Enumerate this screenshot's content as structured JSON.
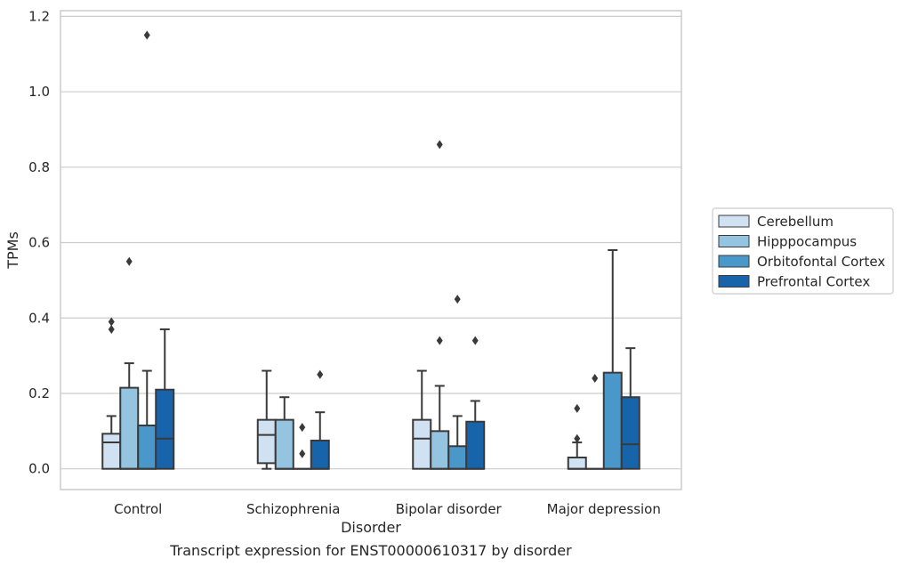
{
  "chart_data": {
    "type": "box",
    "title": "",
    "caption": "Transcript expression for ENST00000610317 by disorder",
    "xlabel": "Disorder",
    "ylabel": "TPMs",
    "ylim": [
      -0.055,
      1.215
    ],
    "yticks": [
      "0.0",
      "0.2",
      "0.4",
      "0.6",
      "0.8",
      "1.0",
      "1.2"
    ],
    "grid": "horizontal",
    "legend_position": "right",
    "categories": [
      "Control",
      "Schizophrenia",
      "Bipolar disorder",
      "Major depression"
    ],
    "series": [
      {
        "name": "Cerebellum",
        "color": "#d0e1f2",
        "boxes": [
          {
            "whisker_low": 0.0,
            "q1": 0.0,
            "median": 0.07,
            "q3": 0.093,
            "whisker_high": 0.14,
            "outliers": [
              0.37,
              0.39
            ]
          },
          {
            "whisker_low": 0.0,
            "q1": 0.015,
            "median": 0.09,
            "q3": 0.13,
            "whisker_high": 0.26,
            "outliers": []
          },
          {
            "whisker_low": 0.0,
            "q1": 0.0,
            "median": 0.08,
            "q3": 0.13,
            "whisker_high": 0.26,
            "outliers": []
          },
          {
            "whisker_low": 0.0,
            "q1": 0.0,
            "median": 0.0,
            "q3": 0.03,
            "whisker_high": 0.07,
            "outliers": [
              0.08,
              0.16
            ]
          }
        ]
      },
      {
        "name": "Hipppocampus",
        "color": "#94c4df",
        "boxes": [
          {
            "whisker_low": 0.0,
            "q1": 0.0,
            "median": 0.0,
            "q3": 0.215,
            "whisker_high": 0.28,
            "outliers": [
              0.55
            ]
          },
          {
            "whisker_low": 0.0,
            "q1": 0.0,
            "median": 0.0,
            "q3": 0.13,
            "whisker_high": 0.19,
            "outliers": []
          },
          {
            "whisker_low": 0.0,
            "q1": 0.0,
            "median": 0.0,
            "q3": 0.1,
            "whisker_high": 0.22,
            "outliers": [
              0.34,
              0.86
            ]
          },
          {
            "whisker_low": 0.0,
            "q1": 0.0,
            "median": 0.0,
            "q3": 0.0,
            "whisker_high": 0.0,
            "outliers": [
              0.24
            ]
          }
        ]
      },
      {
        "name": "Orbitofontal Cortex",
        "color": "#4a98c9",
        "boxes": [
          {
            "whisker_low": 0.0,
            "q1": 0.0,
            "median": 0.0,
            "q3": 0.115,
            "whisker_high": 0.26,
            "outliers": [
              1.15
            ]
          },
          {
            "whisker_low": 0.0,
            "q1": 0.0,
            "median": 0.0,
            "q3": 0.0,
            "whisker_high": 0.0,
            "outliers": [
              0.04,
              0.11
            ]
          },
          {
            "whisker_low": 0.0,
            "q1": 0.0,
            "median": 0.0,
            "q3": 0.06,
            "whisker_high": 0.14,
            "outliers": [
              0.45
            ]
          },
          {
            "whisker_low": 0.0,
            "q1": 0.0,
            "median": 0.0,
            "q3": 0.255,
            "whisker_high": 0.58,
            "outliers": []
          }
        ]
      },
      {
        "name": "Prefrontal Cortex",
        "color": "#1764ab",
        "boxes": [
          {
            "whisker_low": 0.0,
            "q1": 0.0,
            "median": 0.08,
            "q3": 0.21,
            "whisker_high": 0.37,
            "outliers": []
          },
          {
            "whisker_low": 0.0,
            "q1": 0.0,
            "median": 0.0,
            "q3": 0.075,
            "whisker_high": 0.15,
            "outliers": [
              0.25
            ]
          },
          {
            "whisker_low": 0.0,
            "q1": 0.0,
            "median": 0.0,
            "q3": 0.125,
            "whisker_high": 0.18,
            "outliers": [
              0.34
            ]
          },
          {
            "whisker_low": 0.0,
            "q1": 0.0,
            "median": 0.065,
            "q3": 0.19,
            "whisker_high": 0.32,
            "outliers": []
          }
        ]
      }
    ]
  }
}
